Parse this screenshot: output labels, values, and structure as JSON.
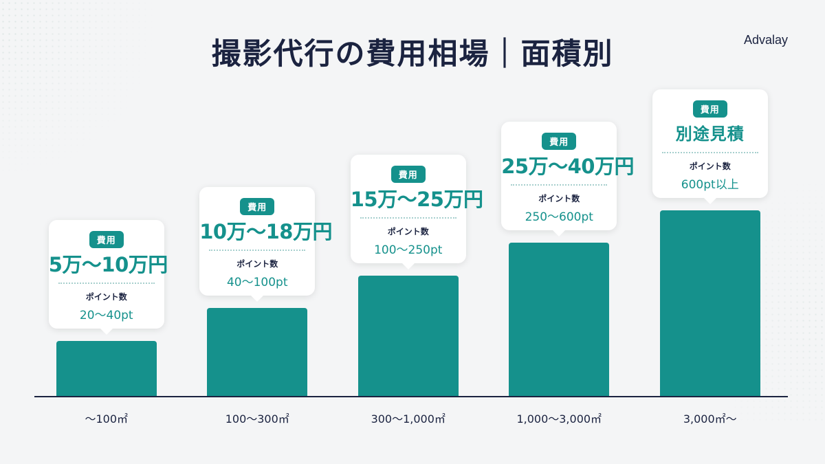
{
  "title": "撮影代行の費用相場｜面積別",
  "brand": "Advalay",
  "chart_data": {
    "type": "bar",
    "title": "撮影代行の費用相場｜面積別",
    "categories": [
      "～100㎡",
      "100～300㎡",
      "300～1,000㎡",
      "1,000～3,000㎡",
      "3,000㎡～"
    ],
    "values": [
      1,
      2,
      3,
      4,
      5
    ],
    "ylim": [
      0,
      5.5
    ],
    "grid": false,
    "bar_color": "#15918c",
    "annotations": [
      {
        "badge": "費用",
        "price": "5万～10万円",
        "points_label": "ポイント数",
        "points": "20～40pt"
      },
      {
        "badge": "費用",
        "price": "10万～18万円",
        "points_label": "ポイント数",
        "points": "40～100pt"
      },
      {
        "badge": "費用",
        "price": "15万～25万円",
        "points_label": "ポイント数",
        "points": "100～250pt"
      },
      {
        "badge": "費用",
        "price": "25万～40万円",
        "points_label": "ポイント数",
        "points": "250～600pt"
      },
      {
        "badge": "費用",
        "price": "別途見積",
        "points_label": "ポイント数",
        "points": "600pt以上"
      }
    ]
  }
}
